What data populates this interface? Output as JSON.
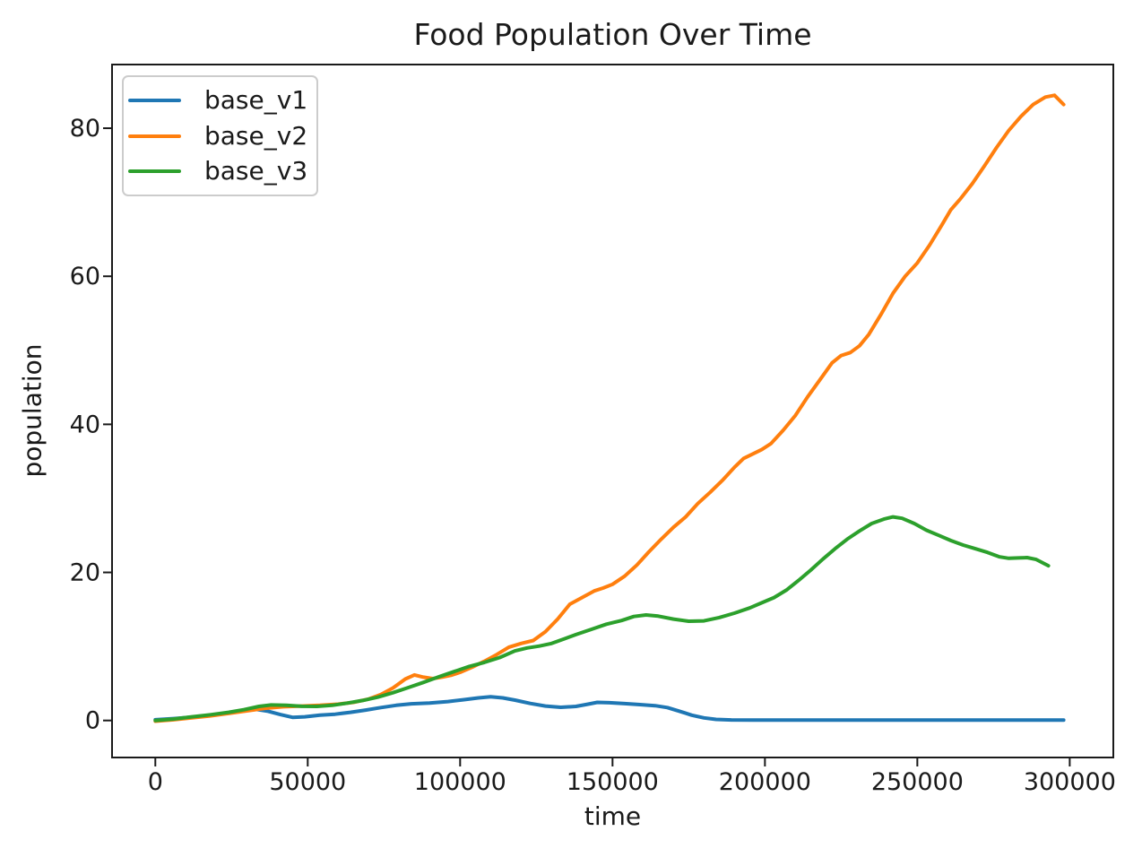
{
  "chart_data": {
    "type": "line",
    "title": "Food Population Over Time",
    "xlabel": "time",
    "ylabel": "population",
    "xlim": [
      -14200,
      314300
    ],
    "ylim": [
      -5.0,
      88.6
    ],
    "x_ticks": [
      0,
      50000,
      100000,
      150000,
      200000,
      250000,
      300000
    ],
    "y_ticks": [
      0,
      20,
      40,
      60,
      80
    ],
    "grid": false,
    "legend_position": "upper left",
    "series": [
      {
        "name": "base_v1",
        "color": "#1f77b4",
        "points": [
          [
            0,
            0.1
          ],
          [
            6000,
            0.25
          ],
          [
            12000,
            0.45
          ],
          [
            18000,
            0.7
          ],
          [
            24000,
            1.0
          ],
          [
            29000,
            1.3
          ],
          [
            33000,
            1.5
          ],
          [
            37000,
            1.25
          ],
          [
            41000,
            0.8
          ],
          [
            45000,
            0.42
          ],
          [
            49000,
            0.5
          ],
          [
            54000,
            0.72
          ],
          [
            59000,
            0.85
          ],
          [
            64000,
            1.1
          ],
          [
            69000,
            1.4
          ],
          [
            74000,
            1.75
          ],
          [
            79000,
            2.05
          ],
          [
            84000,
            2.25
          ],
          [
            90000,
            2.35
          ],
          [
            96000,
            2.55
          ],
          [
            101000,
            2.8
          ],
          [
            106000,
            3.05
          ],
          [
            110000,
            3.2
          ],
          [
            114000,
            3.05
          ],
          [
            118000,
            2.75
          ],
          [
            123000,
            2.3
          ],
          [
            128000,
            1.95
          ],
          [
            133000,
            1.78
          ],
          [
            138000,
            1.9
          ],
          [
            142000,
            2.2
          ],
          [
            145000,
            2.45
          ],
          [
            149000,
            2.4
          ],
          [
            154000,
            2.28
          ],
          [
            159000,
            2.15
          ],
          [
            164000,
            2.0
          ],
          [
            168000,
            1.75
          ],
          [
            172000,
            1.25
          ],
          [
            176000,
            0.72
          ],
          [
            180000,
            0.35
          ],
          [
            184000,
            0.15
          ],
          [
            189000,
            0.07
          ],
          [
            196000,
            0.05
          ],
          [
            210000,
            0.05
          ],
          [
            230000,
            0.05
          ],
          [
            250000,
            0.05
          ],
          [
            270000,
            0.05
          ],
          [
            285000,
            0.05
          ],
          [
            298000,
            0.05
          ]
        ]
      },
      {
        "name": "base_v2",
        "color": "#ff7f0e",
        "points": [
          [
            0,
            -0.1
          ],
          [
            6000,
            0.1
          ],
          [
            12000,
            0.35
          ],
          [
            18000,
            0.62
          ],
          [
            24000,
            0.95
          ],
          [
            30000,
            1.3
          ],
          [
            36000,
            1.65
          ],
          [
            42000,
            1.85
          ],
          [
            48000,
            1.95
          ],
          [
            54000,
            2.05
          ],
          [
            60000,
            2.2
          ],
          [
            65000,
            2.45
          ],
          [
            70000,
            2.9
          ],
          [
            74000,
            3.5
          ],
          [
            78000,
            4.4
          ],
          [
            82000,
            5.6
          ],
          [
            85000,
            6.15
          ],
          [
            88000,
            5.85
          ],
          [
            91000,
            5.65
          ],
          [
            94000,
            5.85
          ],
          [
            97000,
            6.1
          ],
          [
            100000,
            6.5
          ],
          [
            104000,
            7.2
          ],
          [
            108000,
            8.0
          ],
          [
            112000,
            8.9
          ],
          [
            116000,
            9.9
          ],
          [
            120000,
            10.4
          ],
          [
            124000,
            10.8
          ],
          [
            128000,
            12.0
          ],
          [
            132000,
            13.7
          ],
          [
            136000,
            15.7
          ],
          [
            140000,
            16.6
          ],
          [
            144000,
            17.5
          ],
          [
            147000,
            17.9
          ],
          [
            150000,
            18.4
          ],
          [
            154000,
            19.5
          ],
          [
            158000,
            21.0
          ],
          [
            162000,
            22.8
          ],
          [
            166000,
            24.5
          ],
          [
            170000,
            26.1
          ],
          [
            174000,
            27.5
          ],
          [
            178000,
            29.3
          ],
          [
            182000,
            30.8
          ],
          [
            186000,
            32.4
          ],
          [
            190000,
            34.2
          ],
          [
            193000,
            35.4
          ],
          [
            196000,
            36.0
          ],
          [
            199000,
            36.6
          ],
          [
            202000,
            37.4
          ],
          [
            206000,
            39.2
          ],
          [
            210000,
            41.2
          ],
          [
            214000,
            43.7
          ],
          [
            218000,
            46.0
          ],
          [
            222000,
            48.3
          ],
          [
            225000,
            49.3
          ],
          [
            228000,
            49.7
          ],
          [
            231000,
            50.6
          ],
          [
            234000,
            52.1
          ],
          [
            238000,
            54.8
          ],
          [
            242000,
            57.7
          ],
          [
            246000,
            60.0
          ],
          [
            250000,
            61.8
          ],
          [
            254000,
            64.2
          ],
          [
            258000,
            66.9
          ],
          [
            261000,
            69.0
          ],
          [
            264000,
            70.4
          ],
          [
            268000,
            72.5
          ],
          [
            272000,
            74.9
          ],
          [
            276000,
            77.4
          ],
          [
            280000,
            79.7
          ],
          [
            284000,
            81.6
          ],
          [
            288000,
            83.2
          ],
          [
            292000,
            84.2
          ],
          [
            295000,
            84.45
          ],
          [
            298000,
            83.2
          ]
        ]
      },
      {
        "name": "base_v3",
        "color": "#2ca02c",
        "points": [
          [
            0,
            0.0
          ],
          [
            6000,
            0.2
          ],
          [
            12000,
            0.5
          ],
          [
            18000,
            0.78
          ],
          [
            24000,
            1.1
          ],
          [
            29000,
            1.45
          ],
          [
            34000,
            1.9
          ],
          [
            38000,
            2.1
          ],
          [
            43000,
            2.05
          ],
          [
            48000,
            1.92
          ],
          [
            53000,
            1.9
          ],
          [
            58000,
            2.05
          ],
          [
            63000,
            2.35
          ],
          [
            68000,
            2.7
          ],
          [
            73000,
            3.15
          ],
          [
            78000,
            3.75
          ],
          [
            83000,
            4.45
          ],
          [
            88000,
            5.15
          ],
          [
            93000,
            5.9
          ],
          [
            98000,
            6.6
          ],
          [
            103000,
            7.3
          ],
          [
            108000,
            7.85
          ],
          [
            113000,
            8.5
          ],
          [
            118000,
            9.4
          ],
          [
            122000,
            9.8
          ],
          [
            126000,
            10.05
          ],
          [
            130000,
            10.4
          ],
          [
            134000,
            11.0
          ],
          [
            138000,
            11.6
          ],
          [
            143000,
            12.3
          ],
          [
            148000,
            13.0
          ],
          [
            153000,
            13.5
          ],
          [
            157000,
            14.05
          ],
          [
            161000,
            14.25
          ],
          [
            165000,
            14.1
          ],
          [
            170000,
            13.7
          ],
          [
            175000,
            13.4
          ],
          [
            180000,
            13.45
          ],
          [
            185000,
            13.9
          ],
          [
            190000,
            14.5
          ],
          [
            195000,
            15.2
          ],
          [
            199000,
            15.9
          ],
          [
            203000,
            16.6
          ],
          [
            207000,
            17.6
          ],
          [
            211000,
            18.9
          ],
          [
            215000,
            20.3
          ],
          [
            219000,
            21.8
          ],
          [
            223000,
            23.2
          ],
          [
            227000,
            24.5
          ],
          [
            231000,
            25.6
          ],
          [
            235000,
            26.6
          ],
          [
            239000,
            27.2
          ],
          [
            242000,
            27.5
          ],
          [
            245000,
            27.3
          ],
          [
            249000,
            26.6
          ],
          [
            253000,
            25.7
          ],
          [
            257000,
            25.0
          ],
          [
            261000,
            24.3
          ],
          [
            265000,
            23.7
          ],
          [
            269000,
            23.2
          ],
          [
            273000,
            22.7
          ],
          [
            277000,
            22.1
          ],
          [
            280000,
            21.9
          ],
          [
            283000,
            21.95
          ],
          [
            286000,
            22.0
          ],
          [
            289000,
            21.75
          ],
          [
            293000,
            20.9
          ]
        ]
      }
    ]
  }
}
